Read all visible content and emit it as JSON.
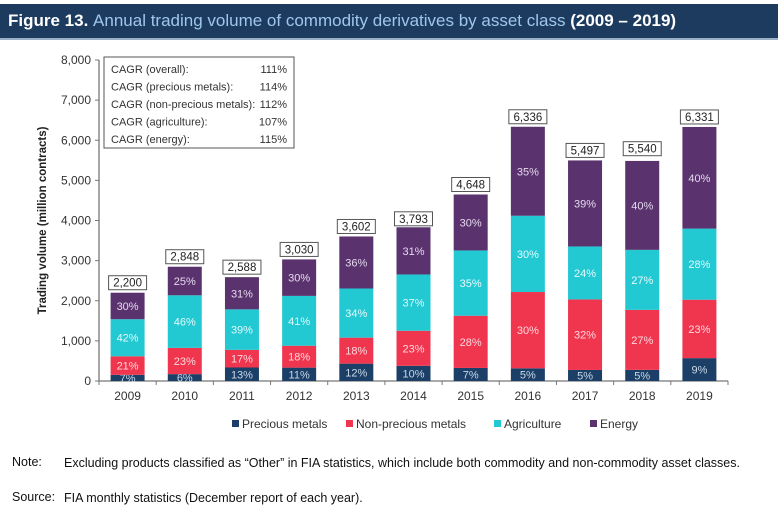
{
  "header": {
    "figure_label": "Figure 13.",
    "title": "Annual trading volume of commodity derivatives by asset class",
    "period": "(2009 – 2019)"
  },
  "chart_data": {
    "type": "bar",
    "stacked": true,
    "title": "Annual trading volume of commodity derivatives by asset class (2009 – 2019)",
    "xlabel": "",
    "ylabel": "Trading volume (million contracts)",
    "ylim": [
      0,
      8000
    ],
    "yticks": [
      0,
      1000,
      2000,
      3000,
      4000,
      5000,
      6000,
      7000,
      8000
    ],
    "ytick_labels": [
      "0",
      "1,000",
      "2,000",
      "3,000",
      "4,000",
      "5,000",
      "6,000",
      "7,000",
      "8,000"
    ],
    "grid": false,
    "categories": [
      "2009",
      "2010",
      "2011",
      "2012",
      "2013",
      "2014",
      "2015",
      "2016",
      "2017",
      "2018",
      "2019"
    ],
    "totals": [
      2200,
      2848,
      2588,
      3030,
      3602,
      3793,
      4648,
      6336,
      5497,
      5540,
      6331
    ],
    "total_labels": [
      "2,200",
      "2,848",
      "2,588",
      "3,030",
      "3,602",
      "3,793",
      "4,648",
      "6,336",
      "5,497",
      "5,540",
      "6,331"
    ],
    "series": [
      {
        "name": "Precious metals",
        "color": "#1b3f66",
        "share_pct": [
          7,
          6,
          13,
          11,
          12,
          10,
          7,
          5,
          5,
          5,
          9
        ]
      },
      {
        "name": "Non-precious metals",
        "color": "#f0364f",
        "share_pct": [
          21,
          23,
          17,
          18,
          18,
          23,
          28,
          30,
          32,
          27,
          23
        ]
      },
      {
        "name": "Agriculture",
        "color": "#22c8d2",
        "share_pct": [
          42,
          46,
          39,
          41,
          34,
          37,
          35,
          30,
          24,
          27,
          28
        ]
      },
      {
        "name": "Energy",
        "color": "#5a336e",
        "share_pct": [
          30,
          25,
          31,
          30,
          36,
          31,
          30,
          35,
          39,
          40,
          40
        ]
      }
    ],
    "legend_position": "bottom",
    "annotation_box": {
      "position": "top-left",
      "rows": [
        {
          "label": "CAGR (overall):",
          "value": "111%"
        },
        {
          "label": "CAGR (precious metals):",
          "value": "114%"
        },
        {
          "label": "CAGR (non-precious metals):",
          "value": "112%"
        },
        {
          "label": "CAGR (agriculture):",
          "value": "107%"
        },
        {
          "label": "CAGR (energy):",
          "value": "115%"
        }
      ]
    }
  },
  "notes": {
    "note_label": "Note:",
    "note_text": "Excluding products classified as “Other” in FIA statistics, which include both commodity and non-commodity asset classes.",
    "source_label": "Source:",
    "source_text": "FIA monthly statistics (December report of each year)."
  }
}
